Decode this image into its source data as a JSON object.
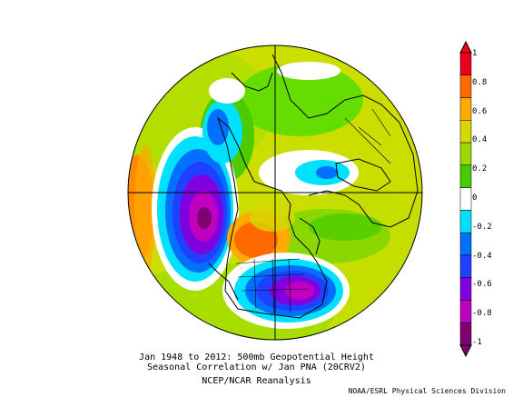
{
  "figure": {
    "title_line1": "Jan 1948 to 2012: 500mb Geopotential Height",
    "title_line2": "Seasonal Correlation w/ Jan PNA (20CRV2)",
    "source": "NCEP/NCAR Reanalysis",
    "credit": "NOAA/ESRL Physical Sciences Division"
  },
  "colorbar": {
    "ticks": [
      "1",
      "0.8",
      "0.6",
      "0.4",
      "0.2",
      "0",
      "-0.2",
      "-0.4",
      "-0.6",
      "-0.8",
      "-1"
    ],
    "colors": [
      "#e8001c",
      "#ff6a00",
      "#ffaa00",
      "#d8d800",
      "#9ad800",
      "#44cc00",
      "#ffffff",
      "#00e0ff",
      "#0070ff",
      "#2040ff",
      "#8000e0",
      "#c000c0",
      "#800070"
    ],
    "min": -1,
    "max": 1
  }
}
